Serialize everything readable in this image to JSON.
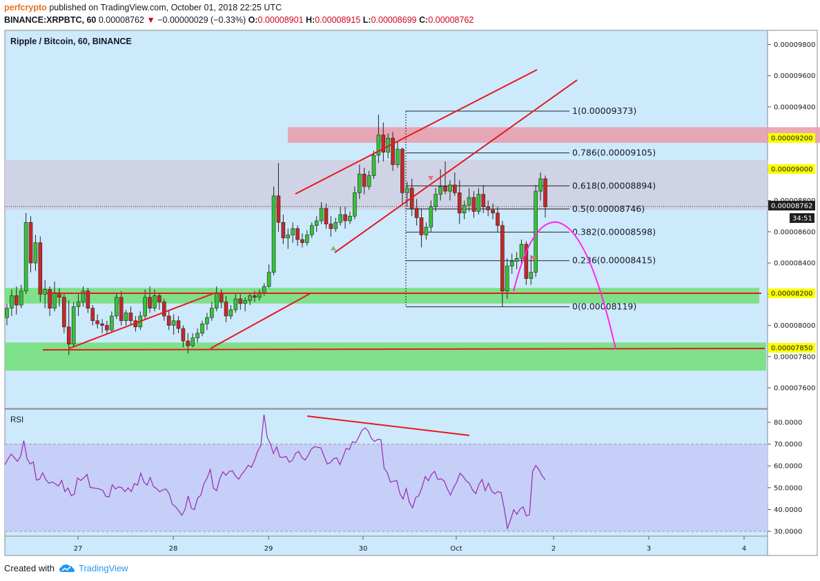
{
  "header": {
    "author": "perfcrypto",
    "published": "published on TradingView.com, October 01, 2018 22:25 UTC",
    "symbol": "BINANCE:XRPBTC, 60",
    "last": "0.00008762",
    "change": "−0.00000029 (−0.33%)",
    "o_label": "O:",
    "o": "0.00008901",
    "h_label": "H:",
    "h": "0.00008915",
    "l_label": "L:",
    "l": "0.00008699",
    "c_label": "C:",
    "c": "0.00008762"
  },
  "footer": {
    "created_with": "Created with",
    "brand": "TradingView"
  },
  "colors": {
    "pane_bg": "#cde9fc",
    "rsi_band": "#c5cff7",
    "green_zone": "#7fe08a",
    "red_zone": "#e8a0ad",
    "gray_zone": "#cfcfe0",
    "up": "#36c23a",
    "down": "#c62828",
    "trend": "#e6171c",
    "arc": "#ff22ee",
    "rsi_line": "#9c27b0",
    "yellow": "#ffff00"
  },
  "chart_data": {
    "type": "candlestick",
    "title": "Ripple / Bitcoin, 60, BINANCE",
    "x_ticks": [
      "27",
      "28",
      "29",
      "30",
      "Oct",
      "2",
      "3",
      "4"
    ],
    "y_ticks": [
      "0.00009800",
      "0.00009600",
      "0.00009400",
      "0.00009200",
      "0.00009000",
      "0.00008800",
      "0.00008600",
      "0.00008400",
      "0.00008200",
      "0.00008000",
      "0.00007800",
      "0.00007600"
    ],
    "ylim": [
      7.52e-05,
      9.87e-05
    ],
    "price_badges": [
      {
        "value": "0.00009200",
        "style": "yellow"
      },
      {
        "value": "0.00009000",
        "style": "yellow"
      },
      {
        "value": "0.00008762",
        "style": "dark"
      },
      {
        "value": "34:51",
        "style": "dark"
      },
      {
        "value": "0.00008200",
        "style": "yellow"
      },
      {
        "value": "0.00007850",
        "style": "yellow"
      }
    ],
    "fib_levels": [
      {
        "label": "1(0.00009373)",
        "value": 9.373e-05
      },
      {
        "label": "0.786(0.00009105)",
        "value": 9.105e-05
      },
      {
        "label": "0.618(0.00008894)",
        "value": 8.894e-05
      },
      {
        "label": "0.5(0.00008746)",
        "value": 8.746e-05
      },
      {
        "label": "0.382(0.00008598)",
        "value": 8.598e-05
      },
      {
        "label": "0.236(0.00008415)",
        "value": 8.415e-05
      },
      {
        "label": "0(0.00008119)",
        "value": 8.119e-05
      }
    ],
    "zones": [
      {
        "name": "resistance",
        "from": 9.17e-05,
        "to": 9.27e-05
      },
      {
        "name": "range",
        "from": 8.74e-05,
        "to": 9.06e-05
      },
      {
        "name": "support-1",
        "from": 8.14e-05,
        "to": 8.24e-05
      },
      {
        "name": "support-2",
        "from": 7.71e-05,
        "to": 7.89e-05
      }
    ],
    "candles": [
      [
        8.05e-05,
        8.14e-05,
        8e-05,
        8.11e-05
      ],
      [
        8.11e-05,
        8.23e-05,
        8.06e-05,
        8.19e-05
      ],
      [
        8.19e-05,
        8.25e-05,
        8.07e-05,
        8.13e-05
      ],
      [
        8.13e-05,
        8.26e-05,
        8.11e-05,
        8.22e-05
      ],
      [
        8.22e-05,
        8.72e-05,
        8.2e-05,
        8.66e-05
      ],
      [
        8.66e-05,
        8.7e-05,
        8.34e-05,
        8.4e-05
      ],
      [
        8.4e-05,
        8.58e-05,
        8.35e-05,
        8.53e-05
      ],
      [
        8.53e-05,
        8.57e-05,
        8.15e-05,
        8.2e-05
      ],
      [
        8.2e-05,
        8.29e-05,
        8.11e-05,
        8.23e-05
      ],
      [
        8.23e-05,
        8.25e-05,
        8.06e-05,
        8.11e-05
      ],
      [
        8.11e-05,
        8.28e-05,
        8.09e-05,
        8.21e-05
      ],
      [
        8.21e-05,
        8.24e-05,
        8.12e-05,
        8.18e-05
      ],
      [
        8.18e-05,
        8.2e-05,
        7.95e-05,
        7.99e-05
      ],
      [
        7.99e-05,
        8.16e-05,
        7.81e-05,
        7.88e-05
      ],
      [
        7.88e-05,
        8.15e-05,
        7.86e-05,
        8.12e-05
      ],
      [
        8.12e-05,
        8.2e-05,
        8.06e-05,
        8.15e-05
      ],
      [
        8.15e-05,
        8.25e-05,
        8.12e-05,
        8.22e-05
      ],
      [
        8.22e-05,
        8.24e-05,
        8.08e-05,
        8.11e-05
      ],
      [
        8.11e-05,
        8.13e-05,
        8e-05,
        8.03e-05
      ],
      [
        8.03e-05,
        8.07e-05,
        7.98e-05,
        8.01e-05
      ],
      [
        8.01e-05,
        8.04e-05,
        7.95e-05,
        8e-05
      ],
      [
        8e-05,
        8.03e-05,
        7.94e-05,
        7.97e-05
      ],
      [
        7.97e-05,
        8.09e-05,
        7.96e-05,
        8.06e-05
      ],
      [
        8.06e-05,
        8.21e-05,
        8.04e-05,
        8.18e-05
      ],
      [
        8.18e-05,
        8.22e-05,
        8e-05,
        8.03e-05
      ],
      [
        8.03e-05,
        8.1e-05,
        8e-05,
        8.08e-05
      ],
      [
        8.08e-05,
        8.12e-05,
        8e-05,
        8.03e-05
      ],
      [
        8.03e-05,
        8.06e-05,
        7.96e-05,
        7.99e-05
      ],
      [
        7.99e-05,
        8.09e-05,
        7.97e-05,
        8.06e-05
      ],
      [
        8.06e-05,
        8.23e-05,
        8.04e-05,
        8.18e-05
      ],
      [
        8.18e-05,
        8.25e-05,
        8.08e-05,
        8.11e-05
      ],
      [
        8.11e-05,
        8.23e-05,
        8.09e-05,
        8.19e-05
      ],
      [
        8.19e-05,
        8.21e-05,
        8.1e-05,
        8.15e-05
      ],
      [
        8.15e-05,
        8.17e-05,
        8.03e-05,
        8.06e-05
      ],
      [
        8.06e-05,
        8.1e-05,
        7.97e-05,
        8e-05
      ],
      [
        8e-05,
        8.07e-05,
        7.94e-05,
        8.03e-05
      ],
      [
        8.03e-05,
        8.06e-05,
        7.95e-05,
        7.98e-05
      ],
      [
        7.98e-05,
        8e-05,
        7.86e-05,
        7.9e-05
      ],
      [
        7.9e-05,
        7.95e-05,
        7.82e-05,
        7.87e-05
      ],
      [
        7.87e-05,
        7.95e-05,
        7.86e-05,
        7.92e-05
      ],
      [
        7.92e-05,
        7.98e-05,
        7.89e-05,
        7.95e-05
      ],
      [
        7.95e-05,
        8.03e-05,
        7.93e-05,
        8.01e-05
      ],
      [
        8.01e-05,
        8.08e-05,
        7.97e-05,
        8.05e-05
      ],
      [
        8.05e-05,
        8.15e-05,
        8.03e-05,
        8.11e-05
      ],
      [
        8.11e-05,
        8.25e-05,
        8.09e-05,
        8.21e-05
      ],
      [
        8.21e-05,
        8.23e-05,
        8.11e-05,
        8.15e-05
      ],
      [
        8.15e-05,
        8.19e-05,
        8.02e-05,
        8.06e-05
      ],
      [
        8.06e-05,
        8.13e-05,
        8.04e-05,
        8.1e-05
      ],
      [
        8.1e-05,
        8.2e-05,
        8.08e-05,
        8.17e-05
      ],
      [
        8.17e-05,
        8.2e-05,
        8.1e-05,
        8.14e-05
      ],
      [
        8.14e-05,
        8.18e-05,
        8.09e-05,
        8.16e-05
      ],
      [
        8.16e-05,
        8.21e-05,
        8.13e-05,
        8.19e-05
      ],
      [
        8.19e-05,
        8.22e-05,
        8.15e-05,
        8.18e-05
      ],
      [
        8.18e-05,
        8.23e-05,
        8.16e-05,
        8.21e-05
      ],
      [
        8.21e-05,
        8.27e-05,
        8.19e-05,
        8.25e-05
      ],
      [
        8.25e-05,
        8.39e-05,
        8.24e-05,
        8.34e-05
      ],
      [
        8.34e-05,
        8.89e-05,
        8.32e-05,
        8.83e-05
      ],
      [
        8.83e-05,
        9.04e-05,
        8.6e-05,
        8.66e-05
      ],
      [
        8.66e-05,
        8.71e-05,
        8.52e-05,
        8.56e-05
      ],
      [
        8.56e-05,
        8.62e-05,
        8.49e-05,
        8.58e-05
      ],
      [
        8.58e-05,
        8.66e-05,
        8.53e-05,
        8.62e-05
      ],
      [
        8.62e-05,
        8.64e-05,
        8.51e-05,
        8.55e-05
      ],
      [
        8.55e-05,
        8.59e-05,
        8.5e-05,
        8.53e-05
      ],
      [
        8.53e-05,
        8.61e-05,
        8.51e-05,
        8.58e-05
      ],
      [
        8.58e-05,
        8.66e-05,
        8.56e-05,
        8.64e-05
      ],
      [
        8.64e-05,
        8.7e-05,
        8.6e-05,
        8.67e-05
      ],
      [
        8.67e-05,
        8.79e-05,
        8.65e-05,
        8.75e-05
      ],
      [
        8.75e-05,
        8.78e-05,
        8.62e-05,
        8.65e-05
      ],
      [
        8.65e-05,
        8.7e-05,
        8.57e-05,
        8.62e-05
      ],
      [
        8.62e-05,
        8.69e-05,
        8.6e-05,
        8.66e-05
      ],
      [
        8.66e-05,
        8.76e-05,
        8.64e-05,
        8.71e-05
      ],
      [
        8.71e-05,
        8.76e-05,
        8.62e-05,
        8.67e-05
      ],
      [
        8.67e-05,
        8.73e-05,
        8.65e-05,
        8.7e-05
      ],
      [
        8.7e-05,
        8.89e-05,
        8.68e-05,
        8.85e-05
      ],
      [
        8.85e-05,
        9.03e-05,
        8.81e-05,
        8.97e-05
      ],
      [
        8.97e-05,
        9.01e-05,
        8.84e-05,
        8.89e-05
      ],
      [
        8.89e-05,
        8.99e-05,
        8.87e-05,
        8.96e-05
      ],
      [
        8.96e-05,
        9.12e-05,
        8.94e-05,
        9.09e-05
      ],
      [
        9.09e-05,
        9.35e-05,
        9.04e-05,
        9.22e-05
      ],
      [
        9.22e-05,
        9.3e-05,
        9.05e-05,
        9.11e-05
      ],
      [
        9.11e-05,
        9.23e-05,
        9.07e-05,
        9.2e-05
      ],
      [
        9.2e-05,
        9.24e-05,
        8.99e-05,
        9.03e-05
      ],
      [
        9.03e-05,
        9.18e-05,
        9.01e-05,
        9.13e-05
      ],
      [
        9.13e-05,
        9.14e-05,
        8.78e-05,
        8.85e-05
      ],
      [
        8.85e-05,
        8.92e-05,
        8.76e-05,
        8.88e-05
      ],
      [
        8.88e-05,
        8.94e-05,
        8.7e-05,
        8.75e-05
      ],
      [
        8.75e-05,
        8.81e-05,
        8.64e-05,
        8.69e-05
      ],
      [
        8.69e-05,
        8.75e-05,
        8.5e-05,
        8.58e-05
      ],
      [
        8.58e-05,
        8.66e-05,
        8.55e-05,
        8.63e-05
      ],
      [
        8.63e-05,
        8.8e-05,
        8.6e-05,
        8.76e-05
      ],
      [
        8.76e-05,
        8.88e-05,
        8.73e-05,
        8.84e-05
      ],
      [
        8.84e-05,
        9e-05,
        8.8e-05,
        8.89e-05
      ],
      [
        8.89e-05,
        9.05e-05,
        8.84e-05,
        8.86e-05
      ],
      [
        8.86e-05,
        8.93e-05,
        8.8e-05,
        8.9e-05
      ],
      [
        8.9e-05,
        8.98e-05,
        8.83e-05,
        8.85e-05
      ],
      [
        8.85e-05,
        8.93e-05,
        8.65e-05,
        8.72e-05
      ],
      [
        8.72e-05,
        8.8e-05,
        8.68e-05,
        8.77e-05
      ],
      [
        8.77e-05,
        8.88e-05,
        8.73e-05,
        8.82e-05
      ],
      [
        8.82e-05,
        8.86e-05,
        8.69e-05,
        8.73e-05
      ],
      [
        8.73e-05,
        8.88e-05,
        8.71e-05,
        8.84e-05
      ],
      [
        8.84e-05,
        8.9e-05,
        8.72e-05,
        8.76e-05
      ],
      [
        8.76e-05,
        8.8e-05,
        8.7e-05,
        8.74e-05
      ],
      [
        8.74e-05,
        8.78e-05,
        8.68e-05,
        8.72e-05
      ],
      [
        8.72e-05,
        8.76e-05,
        8.6e-05,
        8.64e-05
      ],
      [
        8.64e-05,
        8.67e-05,
        8.12e-05,
        8.22e-05
      ],
      [
        8.22e-05,
        8.43e-05,
        8.17e-05,
        8.38e-05
      ],
      [
        8.38e-05,
        8.46e-05,
        8.33e-05,
        8.41e-05
      ],
      [
        8.41e-05,
        8.47e-05,
        8.36e-05,
        8.43e-05
      ],
      [
        8.43e-05,
        8.55e-05,
        8.4e-05,
        8.52e-05
      ],
      [
        8.52e-05,
        8.54e-05,
        8.26e-05,
        8.3e-05
      ],
      [
        8.3e-05,
        8.45e-05,
        8.26e-05,
        8.34e-05
      ],
      [
        8.34e-05,
        8.9e-05,
        8.31e-05,
        8.86e-05
      ],
      [
        8.86e-05,
        8.98e-05,
        8.8e-05,
        8.94e-05
      ],
      [
        8.94e-05,
        8.96e-05,
        8.69e-05,
        8.76e-05
      ]
    ],
    "rsi": {
      "title": "RSI",
      "y_ticks": [
        "80.0000",
        "70.0000",
        "60.0000",
        "50.0000",
        "40.0000",
        "30.0000"
      ],
      "ylim": [
        27,
        83
      ],
      "band": [
        30,
        70
      ],
      "values": [
        60.5,
        63.2,
        65.4,
        63.8,
        62.1,
        64.5,
        71.6,
        63.4,
        60.9,
        61.8,
        53.5,
        53.9,
        56.8,
        53.6,
        52.0,
        52.7,
        51.7,
        50.8,
        53.4,
        48.2,
        49.9,
        46.3,
        47.1,
        54.5,
        53.3,
        54.5,
        56.1,
        50.2,
        49.9,
        49.7,
        49.4,
        48.8,
        46.0,
        45.8,
        51.4,
        49.4,
        50.4,
        50.0,
        48.2,
        49.9,
        48.2,
        51.9,
        51.2,
        56.7,
        52.6,
        51.1,
        54.7,
        50.6,
        49.6,
        48.1,
        49.0,
        49.4,
        47.2,
        42.4,
        41.3,
        39.5,
        37.3,
        40.0,
        46.2,
        40.6,
        39.9,
        45.3,
        46.5,
        51.9,
        54.4,
        58.4,
        49.8,
        48.6,
        54.1,
        57.3,
        55.7,
        57.4,
        57.8,
        55.3,
        53.9,
        56.2,
        58.1,
        60.3,
        59.4,
        62.5,
        66.7,
        69.4,
        83.5,
        73.2,
        70.2,
        65.7,
        68.7,
        64.1,
        63.9,
        64.4,
        61.7,
        62.6,
        65.8,
        66.6,
        63.8,
        62.7,
        64.9,
        67.8,
        68.8,
        68.5,
        68.3,
        64.5,
        60.9,
        61.5,
        63.3,
        63.7,
        60.6,
        64.1,
        68.0,
        67.5,
        71.1,
        70.6,
        73.3,
        76.3,
        77.5,
        75.9,
        72.5,
        71.2,
        72.2,
        72.0,
        59.0,
        56.8,
        52.6,
        53.0,
        53.3,
        47.3,
        44.8,
        49.6,
        43.2,
        40.8,
        45.5,
        46.3,
        50.2,
        55.1,
        53.2,
        56.2,
        57.5,
        53.8,
        54.1,
        53.1,
        49.5,
        46.6,
        50.0,
        52.6,
        56.6,
        55.2,
        53.1,
        52.0,
        48.9,
        47.3,
        51.5,
        53.8,
        48.6,
        52.1,
        48.5,
        47.2,
        48.2,
        47.8,
        40.6,
        31.3,
        35.2,
        39.9,
        37.8,
        40.2,
        41.2,
        37.1,
        37.6,
        57.6,
        60.2,
        58.3,
        55.4,
        53.7
      ]
    }
  }
}
